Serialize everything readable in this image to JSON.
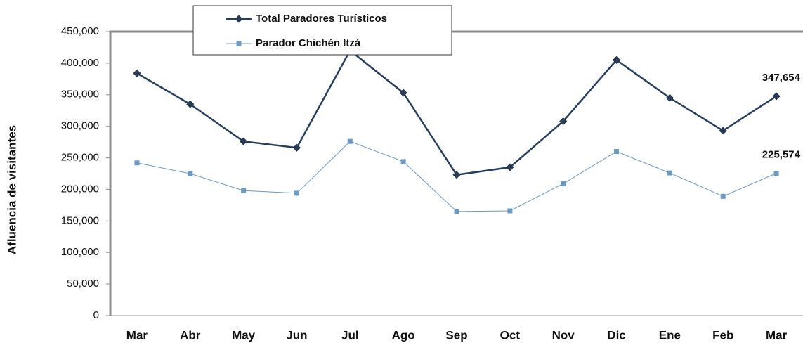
{
  "chart_data": {
    "type": "line",
    "y_label": "Afluencia de visitantes",
    "categories": [
      "Mar",
      "Abr",
      "May",
      "Jun",
      "Jul",
      "Ago",
      "Sep",
      "Oct",
      "Nov",
      "Dic",
      "Ene",
      "Feb",
      "Mar"
    ],
    "series": [
      {
        "name": "Total Paradores Turísticos",
        "color": "#243f60",
        "marker": "diamond",
        "values": [
          384000,
          335000,
          276000,
          266000,
          420000,
          353000,
          223000,
          235000,
          308000,
          405000,
          345000,
          293000,
          347654
        ],
        "value_labels": [
          null,
          null,
          null,
          null,
          null,
          null,
          null,
          null,
          null,
          null,
          null,
          null,
          "347,654"
        ]
      },
      {
        "name": "Parador Chichén Itzá",
        "color": "#6b9ac4",
        "marker": "square",
        "values": [
          242000,
          225000,
          198000,
          194000,
          276000,
          244000,
          165000,
          166000,
          209000,
          260000,
          226000,
          189000,
          225574
        ],
        "value_labels": [
          null,
          null,
          null,
          null,
          null,
          null,
          null,
          null,
          null,
          null,
          null,
          null,
          "225,574"
        ]
      }
    ],
    "ylim": [
      0,
      450000
    ],
    "yticks": [
      0,
      {
        "value": 50000,
        "label": "50,000"
      },
      {
        "value": 100000,
        "label": "100,000"
      },
      {
        "value": 150000,
        "label": "150,000"
      },
      {
        "value": 200000,
        "label": "200,000"
      },
      {
        "value": 250000,
        "label": "250,000"
      },
      {
        "value": 300000,
        "label": "300,000"
      },
      {
        "value": 350000,
        "label": "350,000"
      },
      {
        "value": 400000,
        "label": "400,000"
      },
      {
        "value": 450000,
        "label": "450,000"
      }
    ],
    "grid": false
  }
}
